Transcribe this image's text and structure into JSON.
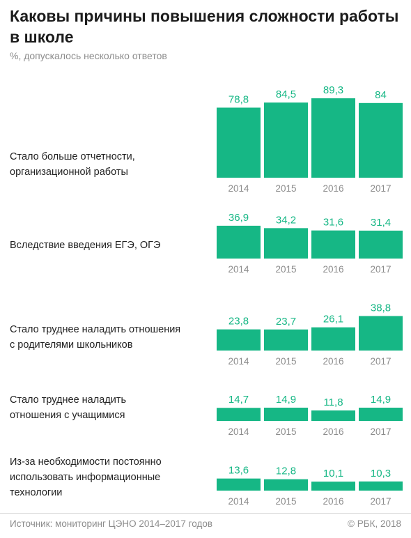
{
  "header": {
    "title": "Каковы причины повышения сложности работы в школе",
    "subtitle": "%, допускалось несколько ответов"
  },
  "footer": {
    "source": "Источник: мониторинг ЦЭНО 2014–2017 годов",
    "copyright": "© РБК, 2018"
  },
  "colors": {
    "bar": "#16b785",
    "value_text": "#16b785",
    "year_text": "#8c8c8c"
  },
  "chart_data": {
    "type": "bar",
    "title": "Каковы причины повышения сложности работы в школе",
    "subtitle": "%, допускалось несколько ответов",
    "years": [
      "2014",
      "2015",
      "2016",
      "2017"
    ],
    "groups": [
      {
        "label": "Стало больше отчетности,\nорганизационной работы",
        "values": [
          78.8,
          84.5,
          89.3,
          84
        ],
        "value_labels": [
          "78,8",
          "84,5",
          "89,3",
          "84"
        ]
      },
      {
        "label": "Вследствие введения ЕГЭ, ОГЭ",
        "values": [
          36.9,
          34.2,
          31.6,
          31.4
        ],
        "value_labels": [
          "36,9",
          "34,2",
          "31,6",
          "31,4"
        ]
      },
      {
        "label": "Стало труднее наладить отношения\nс родителями школьников",
        "values": [
          23.8,
          23.7,
          26.1,
          38.8
        ],
        "value_labels": [
          "23,8",
          "23,7",
          "26,1",
          "38,8"
        ]
      },
      {
        "label": "Стало труднее наладить\nотношения с учащимися",
        "values": [
          14.7,
          14.9,
          11.8,
          14.9
        ],
        "value_labels": [
          "14,7",
          "14,9",
          "11,8",
          "14,9"
        ]
      },
      {
        "label": "Из-за необходимости постоянно\nиспользовать информационные\nтехнологии",
        "values": [
          13.6,
          12.8,
          10.1,
          10.3
        ],
        "value_labels": [
          "13,6",
          "12,8",
          "10,1",
          "10,3"
        ]
      }
    ]
  }
}
